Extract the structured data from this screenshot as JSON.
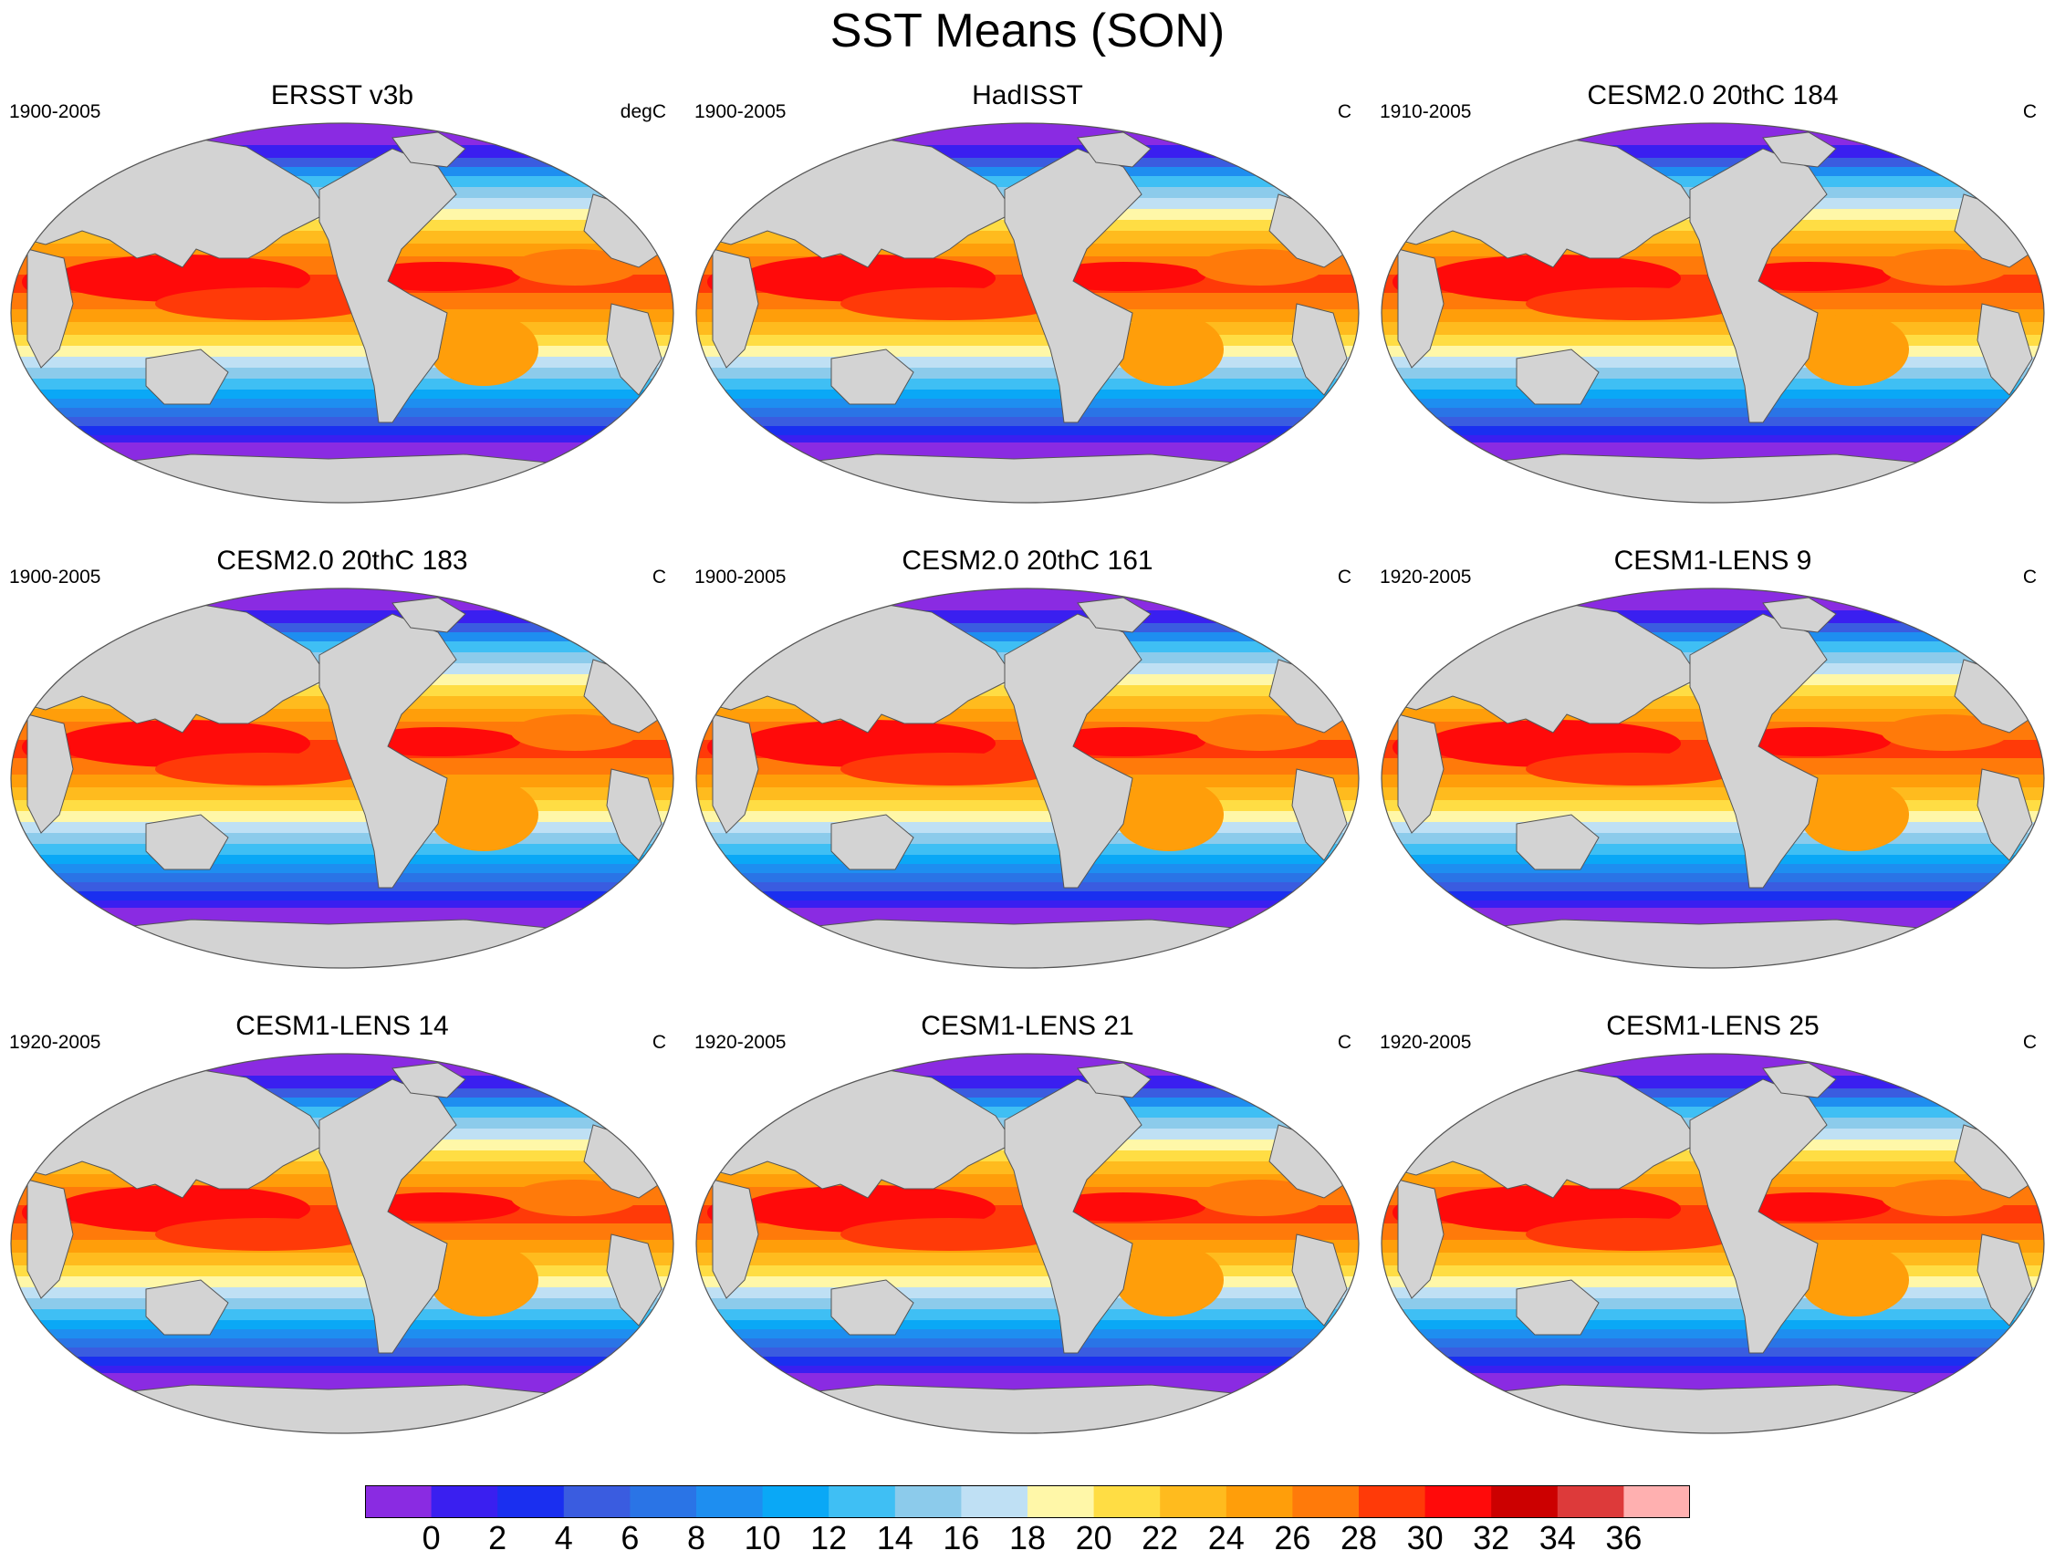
{
  "figure": {
    "title": "SST Means (SON)"
  },
  "panels": [
    {
      "title": "ERSST v3b",
      "years": "1900-2005",
      "units": "degC"
    },
    {
      "title": "HadISST",
      "years": "1900-2005",
      "units": "C"
    },
    {
      "title": "CESM2.0 20thC 184",
      "years": "1910-2005",
      "units": "C"
    },
    {
      "title": "CESM2.0 20thC 183",
      "years": "1900-2005",
      "units": "C"
    },
    {
      "title": "CESM2.0 20thC 161",
      "years": "1900-2005",
      "units": "C"
    },
    {
      "title": "CESM1-LENS 9",
      "years": "1920-2005",
      "units": "C"
    },
    {
      "title": "CESM1-LENS 14",
      "years": "1920-2005",
      "units": "C"
    },
    {
      "title": "CESM1-LENS 21",
      "years": "1920-2005",
      "units": "C"
    },
    {
      "title": "CESM1-LENS 25",
      "years": "1920-2005",
      "units": "C"
    }
  ],
  "colorbar": {
    "labels": [
      "0",
      "2",
      "4",
      "6",
      "8",
      "10",
      "12",
      "14",
      "16",
      "18",
      "20",
      "22",
      "24",
      "26",
      "28",
      "30",
      "32",
      "34",
      "36"
    ],
    "colors": [
      "#8a2be2",
      "#3a1ff0",
      "#1a2ff0",
      "#3a5ce0",
      "#2a74e6",
      "#1e8ef0",
      "#0aa8f6",
      "#3fbff4",
      "#8ccbeb",
      "#bfe0f4",
      "#fff7a8",
      "#ffdd44",
      "#ffbb1e",
      "#ff9e0a",
      "#ff7a0a",
      "#ff3a08",
      "#ff0a0a",
      "#cc0000",
      "#dd3a3a",
      "#ffb0b0"
    ]
  },
  "style": {
    "land": "#d3d3d3",
    "outline": "#555555"
  }
}
